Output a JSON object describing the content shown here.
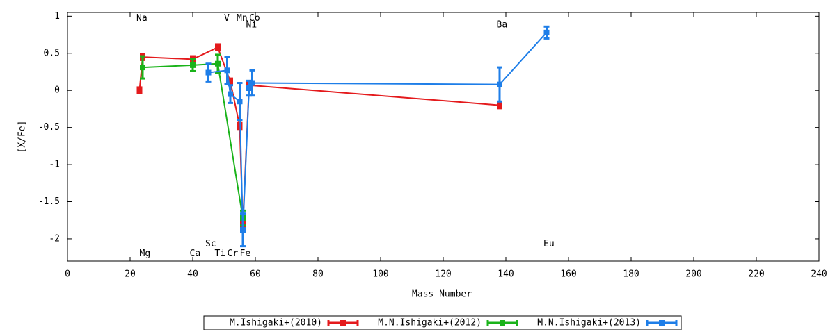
{
  "chart_data": {
    "type": "scatter",
    "xlabel": "Mass Number",
    "ylabel": "[X/Fe]",
    "xlim": [
      0,
      240
    ],
    "xticks": [
      0,
      20,
      40,
      60,
      80,
      100,
      120,
      140,
      160,
      180,
      200,
      220,
      240
    ],
    "ylim": [
      -2.3,
      1.05
    ],
    "yticks": [
      {
        "value": -2,
        "label": "-2"
      },
      {
        "value": -1.5,
        "label": "-1.5"
      },
      {
        "value": -1,
        "label": "-1"
      },
      {
        "value": -0.5,
        "label": "-0.5"
      },
      {
        "value": 0,
        "label": "0"
      },
      {
        "value": 0.5,
        "label": "0.5"
      },
      {
        "value": 1,
        "label": "1"
      }
    ],
    "legend": "bottom",
    "annotations": [
      {
        "text": "Na",
        "x": 22,
        "y": 0.97
      },
      {
        "text": "Mg",
        "x": 23,
        "y": -2.2
      },
      {
        "text": "Ca",
        "x": 39,
        "y": -2.2
      },
      {
        "text": "Sc",
        "x": 44,
        "y": -2.07
      },
      {
        "text": "Ti",
        "x": 47,
        "y": -2.2
      },
      {
        "text": "Cr",
        "x": 51,
        "y": -2.2
      },
      {
        "text": "Fe",
        "x": 55,
        "y": -2.2
      },
      {
        "text": "V",
        "x": 50,
        "y": 0.97
      },
      {
        "text": "Mn",
        "x": 54,
        "y": 0.97
      },
      {
        "text": "Co",
        "x": 58,
        "y": 0.97
      },
      {
        "text": "Ni",
        "x": 57,
        "y": 0.88
      },
      {
        "text": "Ba",
        "x": 137,
        "y": 0.88
      },
      {
        "text": "Eu",
        "x": 152,
        "y": -2.07
      }
    ],
    "series": [
      {
        "name": "M.Ishigaki+(2010)",
        "color": "#e41a1c",
        "x": [
          23,
          24,
          40,
          48,
          52,
          55,
          56,
          58,
          138
        ],
        "values": [
          0.0,
          0.45,
          0.42,
          0.58,
          0.12,
          -0.48,
          -1.82,
          0.07,
          -0.2
        ],
        "errors": [
          0.04,
          0.04,
          0.04,
          0.04,
          0.04,
          0.04,
          0.04,
          0.04,
          0.04
        ]
      },
      {
        "name": "M.N.Ishigaki+(2012)",
        "color": "#1ab31a",
        "x": [
          24,
          40,
          48,
          56
        ],
        "values": [
          0.31,
          0.34,
          0.36,
          -1.72
        ],
        "errors": [
          0.15,
          0.08,
          0.12,
          0.1
        ]
      },
      {
        "name": "M.N.Ishigaki+(2013)",
        "color": "#1e7ee8",
        "x": [
          45,
          51,
          52,
          55,
          56,
          58,
          59,
          138,
          153
        ],
        "values": [
          0.24,
          0.27,
          -0.05,
          -0.15,
          -1.88,
          0.03,
          0.1,
          0.08,
          0.78
        ],
        "errors": [
          0.12,
          0.18,
          0.12,
          0.25,
          0.22,
          0.1,
          0.17,
          0.23,
          0.08
        ]
      }
    ]
  }
}
